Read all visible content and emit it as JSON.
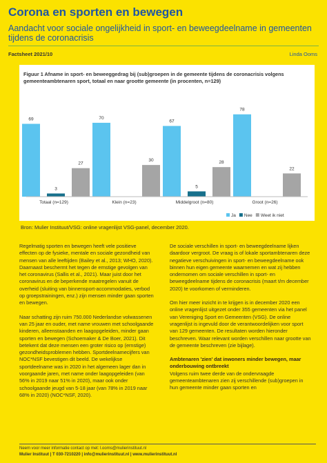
{
  "header": {
    "title": "Corona en sporten en bewegen",
    "subtitle": "Aandacht voor sociale ongelijkheid in sport- en beweegdeelname in gemeenten tijdens de coronacrisis",
    "factsheet": "Factsheet 2021/10",
    "author": "Linda Ooms"
  },
  "figure": {
    "title": "Figuur 1 Afname in sport- en beweeggedrag bij (sub)groepen in de gemeente tijdens de coronacrisis volgens gemeenteambtenaren sport, totaal en naar grootte gemeente (in procenten, n=129)",
    "chart_data": {
      "type": "bar",
      "categories": [
        "Totaal (n=129)",
        "Klein (n=23)",
        "Middelgroot (n=80)",
        "Groot (n=26)"
      ],
      "series": [
        {
          "name": "Ja",
          "color": "#5bc4ef",
          "values": [
            69,
            70,
            67,
            78
          ]
        },
        {
          "name": "Nee",
          "color": "#17708c",
          "values": [
            3,
            0,
            5,
            0
          ]
        },
        {
          "name": "Weet ik niet",
          "color": "#a5a5a5",
          "values": [
            27,
            30,
            28,
            22
          ]
        }
      ],
      "ylim": [
        0,
        85
      ],
      "legend": "bottom-right"
    },
    "source": "Bron: Mulier Instituut/VSG: online vragenlijst VSG-panel, december 2020."
  },
  "body": {
    "left": [
      "Regelmatig sporten en bewegen heeft vele positieve effecten op de fysieke, mentale en sociale gezondheid van mensen van alle leeftijden (Bailey et al., 2013; WHO, 2020). Daarnaast beschermt het tegen de ernstige gevolgen van het coronavirus (Sallis et al., 2021). Maar juist door het coronavirus en de beperkende maatregelen vanuit de overheid (sluiting van binnensport-accommodaties, verbod op groepstrainingen, enz.) zijn mensen minder gaan sporten en bewegen.",
      "Naar schatting zijn ruim 750.000 Nederlandse volwassenen van 25 jaar en ouder, met name vrouwen met schoolgaande kinderen, alleenstaanden en laagopgeleiden, minder gaan sporten en bewegen (Schoemaker & De Boer, 2021). Dit betekent dat deze mensen een groter risico op (ernstige) gezondheidsproblemen hebben. Sportdeelnamecijfers van NOC*NSF bevestigen dit beeld. De wekelijkse sportdeelname was in 2020 in het algemeen lager dan in voorgaande jaren, met name onder laagopgeleiden (van 56% in 2019 naar 51% in 2020), maar ook onder schoolgaande jeugd van 5-18 jaar (van 78% in 2019 naar 68% in 2020) (NOC*NSF, 2020)."
    ],
    "right": [
      "De sociale verschillen in sport- en beweegdeelname lijken daardoor vergroot. De vraag is of lokale sportambtenaren deze negatieve verschuivingen in sport- en beweegdeelname ook binnen hun eigen gemeente waarnemen en wat zij hebben ondernomen om sociale verschillen in sport- en beweegdeelname tijdens de coronacrisis (maart t/m december 2020) te voorkomen of verminderen.",
      "Om hier meer inzicht in te krijgen is in december 2020 een online vragenlijst uitgezet onder 355 gemeenten via het panel van Vereniging Sport en Gemeenten (VSG). De online vragenlijst is ingevuld door de verantwoordelijken voor sport van 129 gemeenten. De resultaten worden hieronder beschreven. Waar relevant worden verschillen naar grootte van de gemeente beschreven (zie bijlage)."
    ],
    "heading": "Ambtenaren 'zien' dat inwoners minder bewegen, maar onderbouwing ontbreekt",
    "after_heading": "Volgens ruim twee derde van de ondervraagde gemeenteambtenaren zien zij verschillende (sub)groepen in hun gemeente minder gaan sporten en"
  },
  "footer": {
    "contact": "Neem voor meer informatie contact op met: l.ooms@mulierinstituut.nl",
    "address": "Mulier Instituut | T 030-7210220 | info@mulierinstituut.nl | www.mulierinstituut.nl"
  }
}
